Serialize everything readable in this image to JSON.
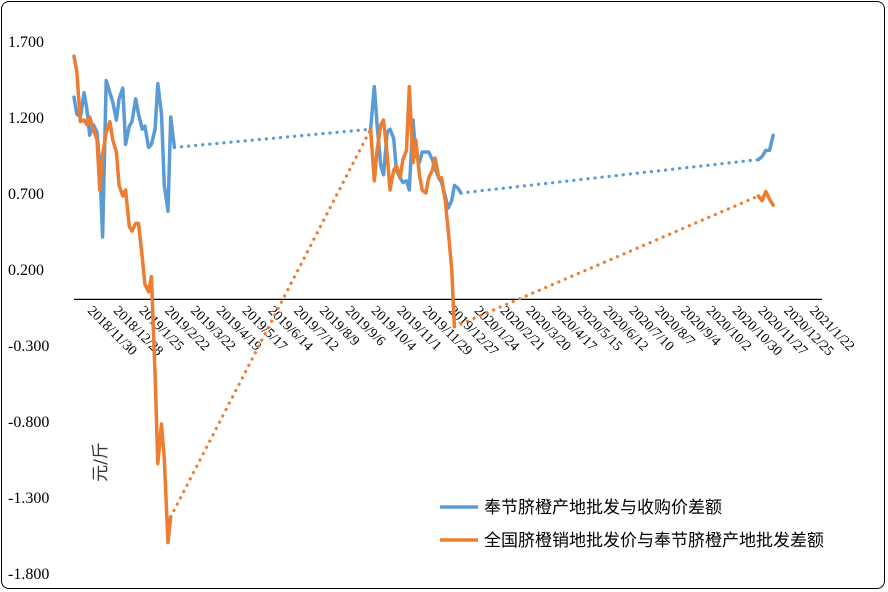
{
  "chart_data": {
    "type": "line",
    "title": "",
    "ylabel": "元/斤",
    "xlabel": "",
    "ylim": [
      -1.8,
      1.7
    ],
    "yticks": [
      "1.700",
      "1.200",
      "0.700",
      "0.200",
      "-0.300",
      "-0.800",
      "-1.300",
      "-1.800"
    ],
    "yticks_values": [
      1.7,
      1.2,
      0.7,
      0.2,
      -0.3,
      -0.8,
      -1.3,
      -1.8
    ],
    "grid": false,
    "legend_position": "bottom-right",
    "xlim": [
      "2018-11-16",
      "2021-02-05"
    ],
    "x_tick_labels": [
      "2018/11/30",
      "2018/12/28",
      "2019/1/25",
      "2019/2/22",
      "2019/3/22",
      "2019/4/19",
      "2019/5/17",
      "2019/6/14",
      "2019/7/12",
      "2019/8/9",
      "2019/9/6",
      "2019/10/4",
      "2019/11/1",
      "2019/11/29",
      "2019/12/27",
      "2020/1/24",
      "2020/2/21",
      "2020/3/20",
      "2020/4/17",
      "2020/5/15",
      "2020/6/12",
      "2020/7/10",
      "2020/8/7",
      "2020/9/4",
      "2020/10/2",
      "2020/10/30",
      "2020/11/27",
      "2020/12/25",
      "2021/1/22"
    ],
    "series": [
      {
        "name": "奉节脐橙产地批发与收购价差额",
        "color": "#5B9BD5",
        "segments": [
          {
            "style": "solid",
            "points": [
              [
                "2018-11-16",
                1.33
              ],
              [
                "2018-11-19",
                1.22
              ],
              [
                "2018-11-23",
                1.2
              ],
              [
                "2018-11-27",
                1.36
              ],
              [
                "2018-11-30",
                1.25
              ],
              [
                "2018-12-03",
                1.08
              ],
              [
                "2018-12-07",
                1.15
              ],
              [
                "2018-12-11",
                1.1
              ],
              [
                "2018-12-14",
                0.88
              ],
              [
                "2018-12-17",
                0.41
              ],
              [
                "2018-12-21",
                1.44
              ],
              [
                "2018-12-25",
                1.36
              ],
              [
                "2018-12-28",
                1.3
              ],
              [
                "2019-01-01",
                1.18
              ],
              [
                "2019-01-04",
                1.32
              ],
              [
                "2019-01-08",
                1.39
              ],
              [
                "2019-01-11",
                1.02
              ],
              [
                "2019-01-15",
                1.14
              ],
              [
                "2019-01-18",
                1.17
              ],
              [
                "2019-01-22",
                1.32
              ],
              [
                "2019-01-25",
                1.22
              ],
              [
                "2019-01-29",
                1.12
              ],
              [
                "2019-02-01",
                1.14
              ],
              [
                "2019-02-05",
                1.0
              ],
              [
                "2019-02-08",
                1.02
              ],
              [
                "2019-02-12",
                1.12
              ],
              [
                "2019-02-15",
                1.42
              ],
              [
                "2019-02-19",
                1.22
              ],
              [
                "2019-02-22",
                0.75
              ],
              [
                "2019-02-26",
                0.58
              ],
              [
                "2019-03-01",
                1.2
              ],
              [
                "2019-03-05",
                1.0
              ]
            ]
          },
          {
            "style": "dotted",
            "points": [
              [
                "2019-03-05",
                1.0
              ],
              [
                "2019-10-04",
                1.12
              ]
            ]
          },
          {
            "style": "solid",
            "points": [
              [
                "2019-10-04",
                1.12
              ],
              [
                "2019-10-08",
                1.4
              ],
              [
                "2019-10-11",
                1.15
              ],
              [
                "2019-10-15",
                0.88
              ],
              [
                "2019-10-18",
                0.82
              ],
              [
                "2019-10-22",
                1.1
              ],
              [
                "2019-10-25",
                1.12
              ],
              [
                "2019-10-29",
                1.06
              ],
              [
                "2019-11-01",
                0.85
              ],
              [
                "2019-11-05",
                0.8
              ],
              [
                "2019-11-08",
                0.77
              ],
              [
                "2019-11-12",
                0.78
              ],
              [
                "2019-11-15",
                0.72
              ],
              [
                "2019-11-19",
                1.18
              ],
              [
                "2019-11-22",
                0.95
              ],
              [
                "2019-11-26",
                0.9
              ],
              [
                "2019-11-29",
                0.97
              ],
              [
                "2019-12-03",
                0.97
              ],
              [
                "2019-12-06",
                0.97
              ],
              [
                "2019-12-10",
                0.92
              ],
              [
                "2019-12-13",
                0.86
              ],
              [
                "2019-12-17",
                0.8
              ],
              [
                "2019-12-20",
                0.77
              ],
              [
                "2019-12-24",
                0.68
              ],
              [
                "2019-12-27",
                0.6
              ],
              [
                "2019-12-31",
                0.65
              ],
              [
                "2020-01-03",
                0.75
              ],
              [
                "2020-01-07",
                0.73
              ],
              [
                "2020-01-10",
                0.7
              ]
            ]
          },
          {
            "style": "dotted",
            "points": [
              [
                "2020-01-10",
                0.7
              ],
              [
                "2020-11-28",
                0.92
              ]
            ]
          },
          {
            "style": "solid",
            "points": [
              [
                "2020-11-28",
                0.92
              ],
              [
                "2020-12-02",
                0.94
              ],
              [
                "2020-12-06",
                0.98
              ],
              [
                "2020-12-10",
                0.98
              ],
              [
                "2020-12-14",
                1.08
              ]
            ]
          }
        ]
      },
      {
        "name": "全国脐橙销地批发价与奉节脐橙产地批发差额",
        "color": "#ED7D31",
        "segments": [
          {
            "style": "solid",
            "points": [
              [
                "2018-11-16",
                1.6
              ],
              [
                "2018-11-19",
                1.5
              ],
              [
                "2018-11-23",
                1.17
              ],
              [
                "2018-11-27",
                1.18
              ],
              [
                "2018-11-30",
                1.15
              ],
              [
                "2018-12-03",
                1.2
              ],
              [
                "2018-12-07",
                1.12
              ],
              [
                "2018-12-11",
                1.05
              ],
              [
                "2018-12-14",
                0.72
              ],
              [
                "2018-12-17",
                0.95
              ],
              [
                "2018-12-21",
                1.1
              ],
              [
                "2018-12-25",
                1.17
              ],
              [
                "2018-12-28",
                1.05
              ],
              [
                "2019-01-01",
                0.97
              ],
              [
                "2019-01-04",
                0.75
              ],
              [
                "2019-01-08",
                0.68
              ],
              [
                "2019-01-11",
                0.72
              ],
              [
                "2019-01-15",
                0.48
              ],
              [
                "2019-01-18",
                0.45
              ],
              [
                "2019-01-22",
                0.5
              ],
              [
                "2019-01-25",
                0.5
              ],
              [
                "2019-01-29",
                0.28
              ],
              [
                "2019-02-01",
                0.1
              ],
              [
                "2019-02-05",
                0.05
              ],
              [
                "2019-02-08",
                0.15
              ],
              [
                "2019-02-12",
                -0.5
              ],
              [
                "2019-02-15",
                -1.08
              ],
              [
                "2019-02-19",
                -0.82
              ],
              [
                "2019-02-22",
                -1.05
              ],
              [
                "2019-02-26",
                -1.6
              ],
              [
                "2019-03-01",
                -1.43
              ]
            ]
          },
          {
            "style": "dotted",
            "points": [
              [
                "2019-03-01",
                -1.43
              ],
              [
                "2019-10-04",
                1.12
              ]
            ]
          },
          {
            "style": "solid",
            "points": [
              [
                "2019-10-04",
                1.12
              ],
              [
                "2019-10-08",
                0.78
              ],
              [
                "2019-10-11",
                0.98
              ],
              [
                "2019-10-15",
                1.15
              ],
              [
                "2019-10-18",
                1.18
              ],
              [
                "2019-10-22",
                0.95
              ],
              [
                "2019-10-25",
                0.72
              ],
              [
                "2019-10-29",
                0.85
              ],
              [
                "2019-11-01",
                0.88
              ],
              [
                "2019-11-05",
                0.8
              ],
              [
                "2019-11-08",
                0.92
              ],
              [
                "2019-11-12",
                0.98
              ],
              [
                "2019-11-15",
                1.4
              ],
              [
                "2019-11-19",
                0.9
              ],
              [
                "2019-11-22",
                1.05
              ],
              [
                "2019-11-26",
                0.82
              ],
              [
                "2019-11-29",
                0.72
              ],
              [
                "2019-12-03",
                0.7
              ],
              [
                "2019-12-06",
                0.8
              ],
              [
                "2019-12-10",
                0.85
              ],
              [
                "2019-12-13",
                0.93
              ],
              [
                "2019-12-17",
                0.8
              ],
              [
                "2019-12-20",
                0.8
              ],
              [
                "2019-12-24",
                0.65
              ],
              [
                "2019-12-27",
                0.47
              ],
              [
                "2019-12-31",
                0.2
              ],
              [
                "2020-01-03",
                -0.18
              ]
            ]
          },
          {
            "style": "dotted",
            "points": [
              [
                "2020-01-03",
                -0.18
              ],
              [
                "2020-11-28",
                0.68
              ]
            ]
          },
          {
            "style": "solid",
            "points": [
              [
                "2020-11-28",
                0.68
              ],
              [
                "2020-12-02",
                0.65
              ],
              [
                "2020-12-06",
                0.71
              ],
              [
                "2020-12-10",
                0.66
              ],
              [
                "2020-12-14",
                0.62
              ]
            ]
          }
        ]
      }
    ]
  }
}
